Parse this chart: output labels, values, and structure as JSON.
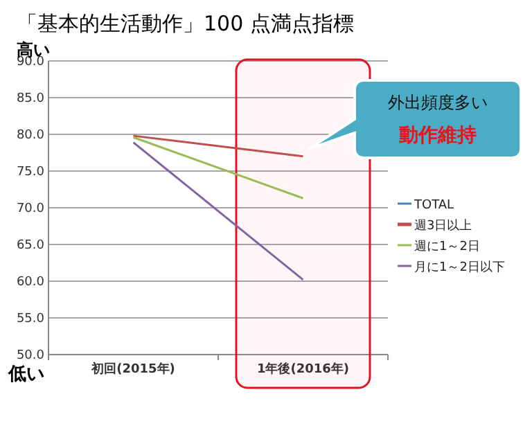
{
  "chart_data": {
    "type": "line",
    "title": "「基本的生活動作」100 点満点指標",
    "categories": [
      "初回(2015年)",
      "1年後(2016年)"
    ],
    "series": [
      {
        "name": "TOTAL",
        "color": "#4f81bd",
        "values": [
          null,
          null
        ]
      },
      {
        "name": "週3日以上",
        "color": "#c0504d",
        "values": [
          79.8,
          77.0
        ]
      },
      {
        "name": "週に1～2日",
        "color": "#9bbb59",
        "values": [
          79.6,
          71.3
        ]
      },
      {
        "name": "月に1～2日以下",
        "color": "#8064a2",
        "values": [
          78.9,
          60.2
        ]
      }
    ],
    "ylim": [
      50,
      90
    ],
    "yticks": [
      {
        "value": 50,
        "label": "50.0"
      },
      {
        "value": 55,
        "label": "55.0"
      },
      {
        "value": 60,
        "label": "60.0"
      },
      {
        "value": 65,
        "label": "65.0"
      },
      {
        "value": 70,
        "label": "70.0"
      },
      {
        "value": 75,
        "label": "75.0"
      },
      {
        "value": 80,
        "label": "80.0"
      },
      {
        "value": 85,
        "label": "85.0"
      },
      {
        "value": 90,
        "label": "90.0"
      }
    ],
    "grid": "y",
    "legend": "right",
    "bands": [
      {
        "axis": "x",
        "from": "1年後(2016年)",
        "to": "1年後(2016年)",
        "color": "#e0141e"
      }
    ],
    "annotations": [
      "外出頻度多い",
      "動作維持",
      "高い",
      "低い"
    ]
  }
}
